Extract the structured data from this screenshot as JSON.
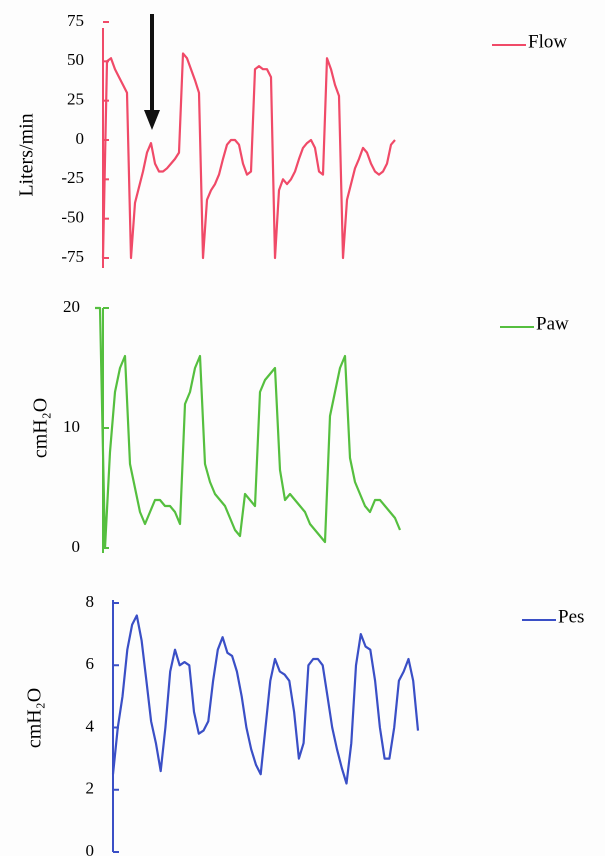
{
  "chart_data": [
    {
      "type": "line",
      "ylabel": "Liters/min",
      "ylim": [
        -75,
        75
      ],
      "yticks": [
        75,
        50,
        25,
        0,
        -25,
        -50,
        -75
      ],
      "series": [
        {
          "name": "Flow",
          "color": "#f04a68",
          "values": [
            -75,
            50,
            52,
            45,
            40,
            35,
            30,
            -75,
            -40,
            -30,
            -20,
            -8,
            -2,
            -15,
            -20,
            -20,
            -18,
            -15,
            -12,
            -8,
            55,
            52,
            45,
            38,
            30,
            -75,
            -38,
            -32,
            -28,
            -22,
            -12,
            -3,
            0,
            0,
            -3,
            -15,
            -22,
            -20,
            45,
            47,
            45,
            45,
            40,
            -75,
            -32,
            -25,
            -28,
            -25,
            -20,
            -12,
            -5,
            -2,
            0,
            -5,
            -20,
            -22,
            52,
            45,
            35,
            28,
            -75,
            -38,
            -28,
            -18,
            -12,
            -5,
            -8,
            -15,
            -20,
            -22,
            -20,
            -15,
            -3,
            0
          ]
        }
      ]
    },
    {
      "type": "line",
      "ylabel": "cmH₂O",
      "ylim": [
        0,
        20
      ],
      "yticks": [
        0,
        10,
        20
      ],
      "series": [
        {
          "name": "Paw",
          "color": "#55bf3f",
          "values": [
            20,
            20,
            0,
            8,
            13,
            15,
            16,
            7,
            5,
            3,
            2,
            3,
            4,
            4,
            3.5,
            3.5,
            3,
            2,
            12,
            13,
            15,
            16,
            7,
            5.5,
            4.5,
            4,
            3.5,
            2.5,
            1.5,
            1,
            4.5,
            4,
            3.5,
            13,
            14,
            14.5,
            15,
            6.5,
            4,
            4.5,
            4,
            3.5,
            3,
            2,
            1.5,
            1,
            0.5,
            11,
            13,
            15,
            16,
            7.5,
            5.5,
            4.5,
            3.5,
            3,
            4,
            4,
            3.5,
            3,
            2.5,
            1.5
          ]
        }
      ]
    },
    {
      "type": "line",
      "ylabel": "cmH₂O",
      "ylim": [
        0,
        8
      ],
      "yticks": [
        0,
        2,
        4,
        6,
        8
      ],
      "series": [
        {
          "name": "Pes",
          "color": "#3a4fc6",
          "values": [
            2.5,
            4,
            5,
            6.5,
            7.3,
            7.6,
            6.8,
            5.5,
            4.2,
            3.5,
            2.6,
            4,
            5.8,
            6.5,
            6,
            6.1,
            6,
            4.5,
            3.8,
            3.9,
            4.2,
            5.5,
            6.5,
            6.9,
            6.4,
            6.3,
            5.8,
            5,
            4,
            3.3,
            2.8,
            2.5,
            4,
            5.5,
            6.2,
            5.8,
            5.7,
            5.5,
            4.5,
            3,
            3.5,
            6,
            6.2,
            6.2,
            6,
            5,
            4,
            3.3,
            2.7,
            2.2,
            3.5,
            6,
            7,
            6.6,
            6.5,
            5.5,
            4,
            3,
            3,
            4,
            5.5,
            5.8,
            6.2,
            5.5,
            3.9
          ]
        }
      ]
    }
  ]
}
